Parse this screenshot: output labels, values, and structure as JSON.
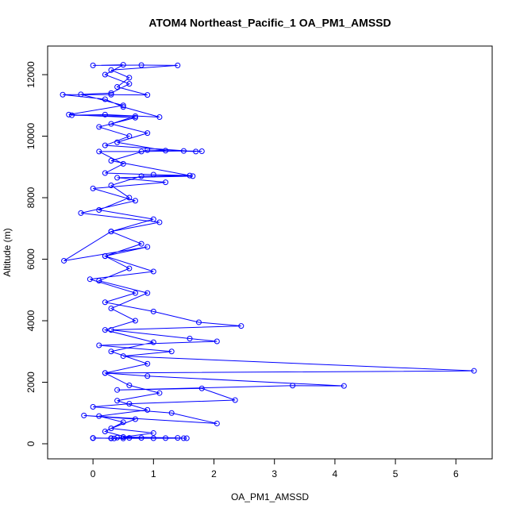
{
  "chart_data": {
    "type": "scatter",
    "title": "ATOM4 Northeast_Pacific_1 OA_PM1_AMSSD",
    "x_label": "OA_PM1_AMSSD",
    "y_label": "Altitude (m)",
    "color": "#0000ff",
    "xlim": [
      -0.75,
      6.6
    ],
    "ylim": [
      -490,
      12930
    ],
    "xticks": [
      0,
      1,
      2,
      3,
      4,
      5,
      6
    ],
    "yticks": [
      0,
      2000,
      4000,
      6000,
      8000,
      10000,
      12000
    ],
    "x": [
      0.0,
      0.3,
      0.5,
      0.8,
      1.0,
      1.2,
      1.5,
      0.4,
      0.35,
      0.6,
      0.2,
      0.5,
      0.1,
      0.9,
      0.4,
      1.1,
      0.6,
      0.2,
      0.9,
      0.3,
      1.0,
      0.2,
      0.7,
      0.3,
      0.9,
      0.1,
      0.6,
      0.2,
      0.8,
      0.3,
      1.0,
      0.1,
      0.6,
      0.3,
      0.8,
      1.6,
      1.0,
      0.2,
      0.5,
      0.1,
      0.8,
      1.5,
      1.8,
      1.2,
      0.4,
      0.9,
      0.3,
      0.7,
      -0.35,
      0.2,
      1.1,
      0.5,
      0.2,
      -0.5,
      0.3,
      0.9,
      0.4,
      0.6,
      0.3,
      1.4,
      0.8,
      0.0,
      0.5,
      0.2,
      0.6,
      0.3,
      -0.2,
      0.5,
      -0.4,
      0.7,
      0.1,
      0.6,
      0.2,
      1.7,
      0.9,
      0.3,
      1.65,
      0.4,
      1.2,
      0.0,
      0.7,
      -0.2,
      1.1,
      0.3,
      -0.48,
      0.9,
      0.2,
      1.0,
      -0.05,
      0.7,
      0.2,
      1.0,
      1.75,
      2.45,
      0.3,
      1.6,
      2.05,
      0.1,
      1.3,
      0.5,
      6.3,
      0.2,
      0.9,
      4.15,
      3.3,
      0.4,
      1.8,
      2.35,
      0.6,
      0.0,
      1.3,
      2.05,
      -0.15,
      0.7,
      0.3,
      1.0,
      0.5,
      1.4,
      1.55,
      0.3,
      0.0
    ],
    "values": [
      180,
      185,
      175,
      190,
      180,
      185,
      180,
      200,
      175,
      190,
      400,
      700,
      900,
      1100,
      1400,
      1650,
      1900,
      2300,
      2600,
      3000,
      3300,
      3700,
      4000,
      4400,
      4900,
      5300,
      5700,
      6100,
      6500,
      6900,
      7300,
      7600,
      8000,
      8400,
      8700,
      8720,
      8750,
      8800,
      9100,
      9500,
      9500,
      9520,
      9510,
      9530,
      9800,
      10100,
      10400,
      10650,
      10680,
      10700,
      10620,
      10950,
      11200,
      11350,
      11350,
      11340,
      11600,
      11900,
      12150,
      12300,
      12310,
      12300,
      12320,
      12000,
      11700,
      11400,
      11360,
      11000,
      10700,
      10600,
      10300,
      10000,
      9700,
      9500,
      9550,
      9200,
      8700,
      8650,
      8500,
      8300,
      7900,
      7500,
      7200,
      6900,
      5950,
      6400,
      6100,
      5600,
      5350,
      4900,
      4600,
      4300,
      3950,
      3830,
      3700,
      3420,
      3330,
      3200,
      3000,
      2850,
      2370,
      2300,
      2200,
      1880,
      1890,
      1750,
      1800,
      1420,
      1300,
      1200,
      1000,
      660,
      920,
      800,
      500,
      350,
      220,
      190,
      180,
      175,
      190
    ]
  }
}
